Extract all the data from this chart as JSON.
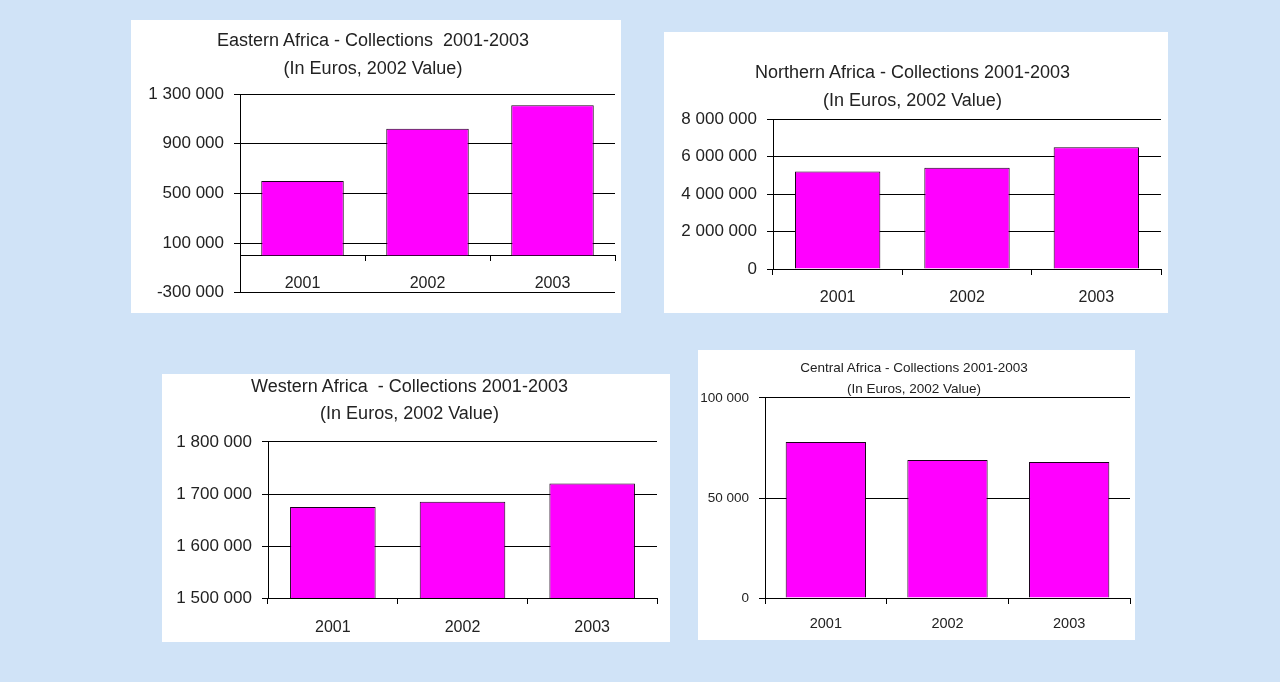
{
  "chart_data": [
    {
      "type": "bar",
      "title": "Eastern Africa - Collections  2001-2003",
      "subtitle": "(In Euros, 2002 Value)",
      "categories": [
        "2001",
        "2002",
        "2003"
      ],
      "values": [
        600000,
        1020000,
        1210000
      ],
      "color": "#ff00ff",
      "ylim": [
        -300000,
        1300000
      ],
      "yticks": [
        {
          "value": -300000,
          "label": "-300 000"
        },
        {
          "value": 100000,
          "label": "100 000"
        },
        {
          "value": 500000,
          "label": "500 000"
        },
        {
          "value": 900000,
          "label": "900 000"
        },
        {
          "value": 1300000,
          "label": "1 300 000"
        }
      ],
      "grid": "y"
    },
    {
      "type": "bar",
      "title": "Northern Africa - Collections 2001-2003",
      "subtitle": "(In Euros, 2002 Value)",
      "categories": [
        "2001",
        "2002",
        "2003"
      ],
      "values": [
        5200000,
        5400000,
        6500000
      ],
      "color": "#ff00ff",
      "ylim": [
        0,
        8000000
      ],
      "yticks": [
        0,
        {
          "value": 2000000,
          "label": "2 000 000"
        },
        {
          "value": 4000000,
          "label": "4 000 000"
        },
        {
          "value": 6000000,
          "label": "6 000 000"
        },
        {
          "value": 8000000,
          "label": "8 000 000"
        }
      ],
      "grid": "y"
    },
    {
      "type": "bar",
      "title": "Western Africa  - Collections 2001-2003",
      "subtitle": "(In Euros, 2002 Value)",
      "categories": [
        "2001",
        "2002",
        "2003"
      ],
      "values": [
        1675000,
        1685000,
        1720000
      ],
      "color": "#ff00ff",
      "ylim": [
        1500000,
        1800000
      ],
      "yticks": [
        {
          "value": 1500000,
          "label": "1 500 000"
        },
        {
          "value": 1600000,
          "label": "1 600 000"
        },
        {
          "value": 1700000,
          "label": "1 700 000"
        },
        {
          "value": 1800000,
          "label": "1 800 000"
        }
      ],
      "grid": "y"
    },
    {
      "type": "bar",
      "title": "Central Africa - Collections 2001-2003",
      "subtitle": "(In Euros, 2002 Value)",
      "categories": [
        "2001",
        "2002",
        "2003"
      ],
      "values": [
        78000,
        69000,
        68000
      ],
      "color": "#ff00ff",
      "ylim": [
        0,
        100000
      ],
      "yticks": [
        0,
        {
          "value": 50000,
          "label": "50 000"
        },
        {
          "value": 100000,
          "label": "100 000"
        }
      ],
      "grid": "y"
    }
  ]
}
